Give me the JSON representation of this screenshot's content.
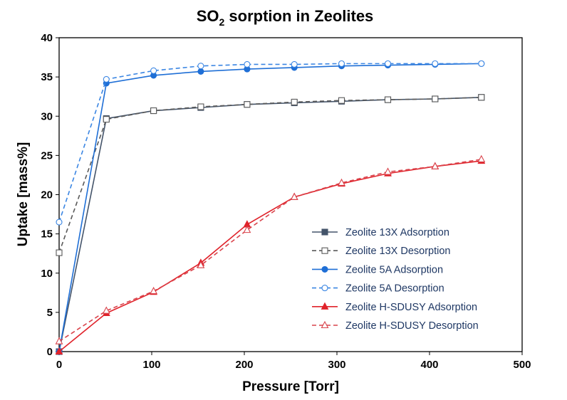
{
  "chart_data": {
    "type": "line",
    "title": {
      "main": "SO",
      "sub": "2",
      "rest": " sorption in Zeolites"
    },
    "xlabel": "Pressure [Torr]",
    "ylabel": "Uptake [mass%]",
    "xlim": [
      0,
      500
    ],
    "ylim": [
      0,
      40
    ],
    "xticks": [
      0,
      100,
      200,
      300,
      400,
      500
    ],
    "yticks": [
      0,
      5,
      10,
      15,
      20,
      25,
      30,
      35,
      40
    ],
    "grid": false,
    "legend_position": "bottom-right",
    "series": [
      {
        "name": "Zeolite 13X Adsorption",
        "color": "#44546a",
        "line": "solid",
        "marker": "square-filled",
        "x": [
          0,
          51,
          102,
          153,
          203,
          254,
          305,
          355,
          406,
          456
        ],
        "y": [
          0,
          29.7,
          30.7,
          31.1,
          31.5,
          31.7,
          31.9,
          32.1,
          32.2,
          32.4
        ]
      },
      {
        "name": "Zeolite 13X Desorption",
        "color": "#595959",
        "line": "dashed",
        "marker": "square-open",
        "x": [
          0,
          51,
          102,
          153,
          203,
          254,
          305,
          355,
          406,
          456
        ],
        "y": [
          12.6,
          29.6,
          30.7,
          31.2,
          31.5,
          31.8,
          32.0,
          32.1,
          32.2,
          32.4
        ]
      },
      {
        "name": "Zeolite 5A Adsorption",
        "color": "#1f6fd6",
        "line": "solid",
        "marker": "circle-filled",
        "x": [
          0,
          51,
          102,
          153,
          203,
          254,
          305,
          355,
          406,
          456
        ],
        "y": [
          0,
          34.2,
          35.2,
          35.7,
          36.0,
          36.2,
          36.4,
          36.5,
          36.6,
          36.7
        ]
      },
      {
        "name": "Zeolite 5A Desorption",
        "color": "#3b86e3",
        "line": "dashed",
        "marker": "circle-open",
        "x": [
          0,
          51,
          102,
          153,
          203,
          254,
          305,
          355,
          406,
          456
        ],
        "y": [
          16.5,
          34.7,
          35.8,
          36.4,
          36.6,
          36.6,
          36.7,
          36.7,
          36.7,
          36.7
        ]
      },
      {
        "name": "Zeolite H-SDUSY Adsorption",
        "color": "#e0232b",
        "line": "solid",
        "marker": "triangle-filled",
        "x": [
          0,
          51,
          102,
          153,
          203,
          254,
          305,
          355,
          406,
          456
        ],
        "y": [
          0,
          4.9,
          7.6,
          11.3,
          16.2,
          19.7,
          21.4,
          22.7,
          23.6,
          24.3
        ]
      },
      {
        "name": "Zeolite H-SDUSY Desorption",
        "color": "#d9434b",
        "line": "dashed",
        "marker": "triangle-open",
        "x": [
          0,
          51,
          102,
          153,
          203,
          254,
          305,
          355,
          406,
          456
        ],
        "y": [
          1.3,
          5.2,
          7.7,
          11.0,
          15.5,
          19.7,
          21.5,
          22.9,
          23.6,
          24.5
        ]
      }
    ],
    "legend_text_color": "#1f3864"
  }
}
